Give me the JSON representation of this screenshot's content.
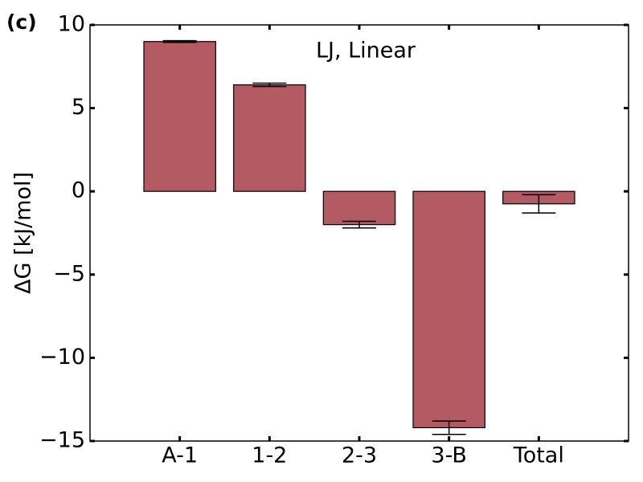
{
  "chart_data": {
    "type": "bar",
    "panel_label": "(c)",
    "annotation": "LJ, Linear",
    "ylabel": "ΔG [kJ/mol]",
    "categories": [
      "A-1",
      "1-2",
      "2-3",
      "3-B",
      "Total"
    ],
    "values": [
      9.0,
      6.4,
      -2.0,
      -14.2,
      -0.75
    ],
    "errors": [
      0.05,
      0.1,
      0.2,
      0.4,
      0.55
    ],
    "color": "#b35a62",
    "ylim": [
      -15,
      10
    ],
    "yticks": [
      {
        "value": -15,
        "label": "−15"
      },
      {
        "value": -10,
        "label": "−10"
      },
      {
        "value": -5,
        "label": "−5"
      },
      0,
      5,
      10
    ],
    "grid": false
  }
}
